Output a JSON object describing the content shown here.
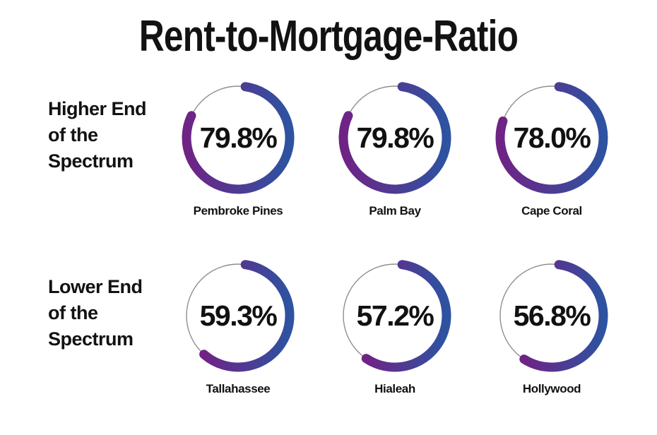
{
  "title": "Rent-to-Mortgage-Ratio",
  "chart_data": {
    "type": "donut",
    "title": "Rent-to-Mortgage-Ratio",
    "unit": "%",
    "value_range": [
      0,
      100
    ],
    "rows": [
      {
        "label": "Higher End of the Spectrum",
        "label_lines": [
          "Higher End",
          "of the",
          "Spectrum"
        ],
        "gauges": [
          {
            "city": "Pembroke Pines",
            "value": 79.8,
            "display": "79.8%"
          },
          {
            "city": "Palm Bay",
            "value": 79.8,
            "display": "79.8%"
          },
          {
            "city": "Cape Coral",
            "value": 78.0,
            "display": "78.0%"
          }
        ]
      },
      {
        "label": "Lower End of the Spectrum",
        "label_lines": [
          "Lower End",
          "of the",
          "Spectrum"
        ],
        "gauges": [
          {
            "city": "Tallahassee",
            "value": 59.3,
            "display": "59.3%"
          },
          {
            "city": "Hialeah",
            "value": 57.2,
            "display": "57.2%"
          },
          {
            "city": "Hollywood",
            "value": 56.8,
            "display": "56.8%"
          }
        ]
      }
    ],
    "style": {
      "arc_start_deg": 8,
      "gradient_from": "#6f2385",
      "gradient_to": "#2d53a1",
      "track_color": "#8f8f8f",
      "arc_stroke_width": 13,
      "track_stroke_width": 1.4
    }
  }
}
